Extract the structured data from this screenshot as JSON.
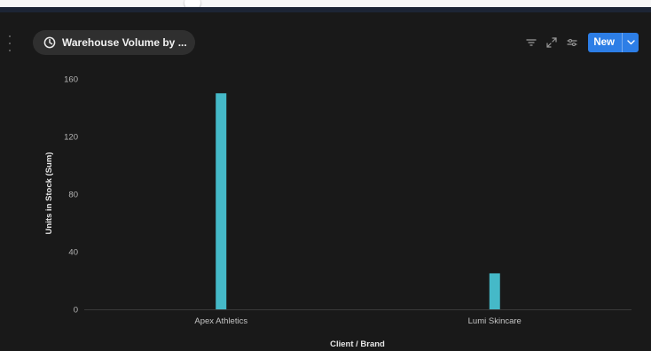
{
  "view": {
    "title": "Warehouse Volume by ..."
  },
  "toolbar": {
    "filter_icon": "filter-lines-icon",
    "expand_icon": "expand-arrows-icon",
    "settings_icon": "sliders-icon",
    "new_label": "New",
    "new_caret_icon": "chevron-down-icon"
  },
  "colors": {
    "background": "#191919",
    "bar": "#45b9c8",
    "accent": "#2d7ee6",
    "pill": "#2f2f2f"
  },
  "chart_data": {
    "type": "bar",
    "categories": [
      "Apex Athletics",
      "Lumi Skincare"
    ],
    "values": [
      150,
      25
    ],
    "xlabel": "Client / Brand",
    "ylabel": "Units in Stock (Sum)",
    "ylim": [
      0,
      160
    ],
    "yticks": [
      0,
      40,
      80,
      120,
      160
    ],
    "grid": false,
    "legend": "none"
  }
}
